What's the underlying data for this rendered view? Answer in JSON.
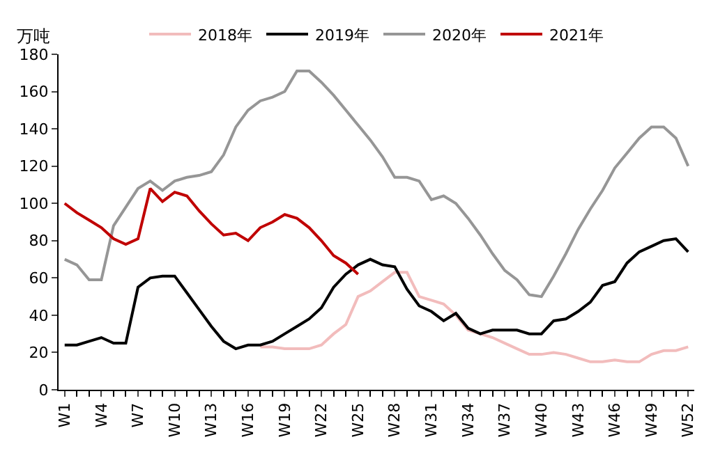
{
  "chart_data": {
    "type": "line",
    "ylabel": "万吨",
    "categories": [
      "W1",
      null,
      null,
      "W4",
      null,
      null,
      "W7",
      null,
      null,
      "W10",
      null,
      null,
      "W13",
      null,
      null,
      "W16",
      null,
      null,
      "W19",
      null,
      null,
      "W22",
      null,
      null,
      "W25",
      null,
      null,
      "W28",
      null,
      null,
      "W31",
      null,
      null,
      "W34",
      null,
      null,
      "W37",
      null,
      null,
      "W40",
      null,
      null,
      "W43",
      null,
      null,
      "W46",
      null,
      null,
      "W49",
      null,
      null,
      "W52"
    ],
    "ylim": [
      0,
      180
    ],
    "yticks": [
      0,
      20,
      40,
      60,
      80,
      100,
      120,
      140,
      160,
      180
    ],
    "legend": "top",
    "marker": "none",
    "line_style": "solid",
    "series": [
      {
        "name": "2018年",
        "color": "#f2bcbc",
        "values": [
          null,
          null,
          null,
          null,
          null,
          null,
          null,
          null,
          null,
          null,
          null,
          null,
          null,
          null,
          null,
          null,
          23,
          23,
          22,
          22,
          22,
          24,
          30,
          35,
          50,
          53,
          58,
          63,
          63,
          50,
          48,
          46,
          40,
          32,
          30,
          28,
          25,
          22,
          19,
          19,
          20,
          19,
          17,
          15,
          15,
          16,
          15,
          15,
          19,
          21,
          21,
          23
        ]
      },
      {
        "name": "2019年",
        "color": "#000000",
        "values": [
          24,
          24,
          26,
          28,
          25,
          25,
          55,
          60,
          61,
          61,
          52,
          43,
          34,
          26,
          22,
          24,
          24,
          26,
          30,
          34,
          38,
          44,
          55,
          62,
          67,
          70,
          67,
          66,
          54,
          45,
          42,
          37,
          41,
          33,
          30,
          32,
          32,
          32,
          30,
          30,
          37,
          38,
          42,
          47,
          56,
          58,
          68,
          74,
          77,
          80,
          81,
          74
        ]
      },
      {
        "name": "2020年",
        "color": "#969696",
        "values": [
          70,
          67,
          59,
          59,
          88,
          98,
          108,
          112,
          107,
          112,
          114,
          115,
          117,
          126,
          141,
          150,
          155,
          157,
          160,
          171,
          171,
          165,
          158,
          150,
          142,
          134,
          125,
          114,
          114,
          112,
          102,
          104,
          100,
          92,
          83,
          73,
          64,
          59,
          51,
          50,
          61,
          73,
          86,
          97,
          107,
          119,
          127,
          135,
          141,
          141,
          135,
          120
        ]
      },
      {
        "name": "2021年",
        "color": "#c00000",
        "values": [
          100,
          95,
          91,
          87,
          81,
          78,
          81,
          108,
          101,
          106,
          104,
          96,
          89,
          83,
          84,
          80,
          87,
          90,
          94,
          92,
          87,
          80,
          72,
          68,
          62,
          null,
          null,
          null,
          null,
          null,
          null,
          null,
          null,
          null,
          null,
          null,
          null,
          null,
          null,
          null,
          null,
          null,
          null,
          null,
          null,
          null,
          null,
          null,
          null,
          null,
          null,
          null
        ]
      }
    ]
  }
}
